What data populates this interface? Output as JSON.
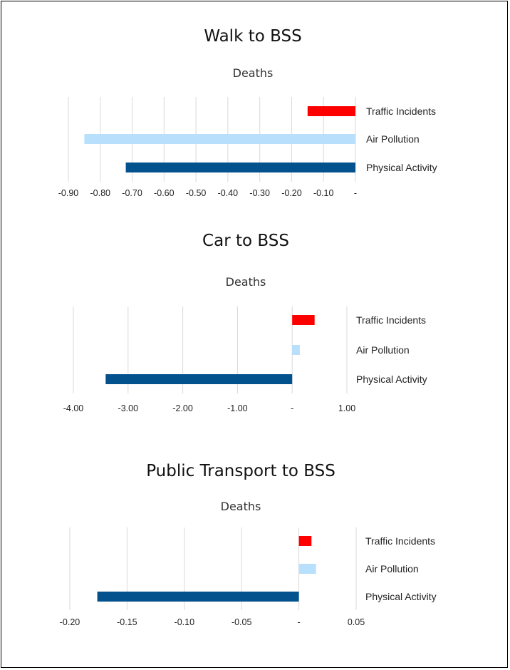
{
  "chart_data": [
    {
      "type": "bar",
      "orientation": "horizontal",
      "title": "Walk to BSS",
      "subtitle": "Deaths",
      "categories": [
        "Traffic Incidents",
        "Air Pollution",
        "Physical Activity"
      ],
      "values": [
        -0.15,
        -0.85,
        -0.72
      ],
      "colors": [
        "#ff0000",
        "#b8e0fc",
        "#03528e"
      ],
      "xlim": [
        -0.9,
        0
      ],
      "ticks": [
        -0.9,
        -0.8,
        -0.7,
        -0.6,
        -0.5,
        -0.4,
        -0.3,
        -0.2,
        -0.1,
        0
      ],
      "tick_labels": [
        "-0.90",
        "-0.80",
        "-0.70",
        "-0.60",
        "-0.50",
        "-0.40",
        "-0.30",
        "-0.20",
        "-0.10",
        "-"
      ],
      "grid": true
    },
    {
      "type": "bar",
      "orientation": "horizontal",
      "title": "Car to BSS",
      "subtitle": "Deaths",
      "categories": [
        "Traffic Incidents",
        "Air Pollution",
        "Physical Activity"
      ],
      "values": [
        0.41,
        0.14,
        -3.41
      ],
      "colors": [
        "#ff0000",
        "#b8e0fc",
        "#03528e"
      ],
      "xlim": [
        -4,
        1
      ],
      "ticks": [
        -4,
        -3,
        -2,
        -1,
        0,
        1
      ],
      "tick_labels": [
        "-4.00",
        "-3.00",
        "-2.00",
        "-1.00",
        "-",
        "1.00"
      ],
      "grid": true
    },
    {
      "type": "bar",
      "orientation": "horizontal",
      "title": "Public Transport to BSS",
      "subtitle": "Deaths",
      "categories": [
        "Traffic Incidents",
        "Air Pollution",
        "Physical Activity"
      ],
      "values": [
        0.011,
        0.015,
        -0.176
      ],
      "colors": [
        "#ff0000",
        "#b8e0fc",
        "#03528e"
      ],
      "xlim": [
        -0.2,
        0.05
      ],
      "ticks": [
        -0.2,
        -0.15,
        -0.1,
        -0.05,
        0,
        0.05
      ],
      "tick_labels": [
        "-0.20",
        "-0.15",
        "-0.10",
        "-0.05",
        "-",
        "0.05"
      ],
      "grid": true
    }
  ]
}
